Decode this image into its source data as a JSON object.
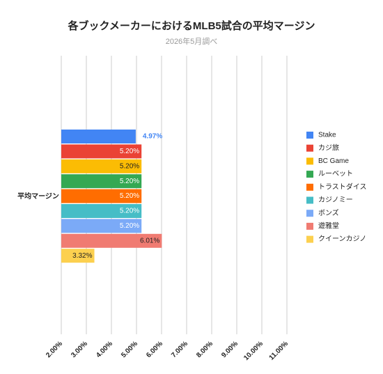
{
  "chart_data": {
    "type": "bar",
    "orientation": "horizontal",
    "title": "各ブックメーカーにおけるMLB5試合の平均マージン",
    "subtitle": "2026年5月調べ",
    "categories": [
      "平均マージン"
    ],
    "series": [
      {
        "name": "Stake",
        "color": "#4285f4",
        "values": [
          4.97
        ],
        "value_labels": [
          "4.97%"
        ]
      },
      {
        "name": "カジ旅",
        "color": "#ea4335",
        "values": [
          5.2
        ],
        "value_labels": [
          "5.20%"
        ]
      },
      {
        "name": "BC Game",
        "color": "#fbbc04",
        "values": [
          5.2
        ],
        "value_labels": [
          "5.20%"
        ]
      },
      {
        "name": "ルーベット",
        "color": "#34a853",
        "values": [
          5.2
        ],
        "value_labels": [
          "5.20%"
        ]
      },
      {
        "name": "トラストダイス",
        "color": "#ff6d01",
        "values": [
          5.2
        ],
        "value_labels": [
          "5.20%"
        ]
      },
      {
        "name": "カジノミー",
        "color": "#46bdc6",
        "values": [
          5.2
        ],
        "value_labels": [
          "5.20%"
        ]
      },
      {
        "name": "ボンズ",
        "color": "#7baaf7",
        "values": [
          5.2
        ],
        "value_labels": [
          "5.20%"
        ]
      },
      {
        "name": "遊雅堂",
        "color": "#f07b72",
        "values": [
          6.01
        ],
        "value_labels": [
          "6.01%"
        ]
      },
      {
        "name": "クイーンカジノ",
        "color": "#fcd04f",
        "values": [
          3.32
        ],
        "value_labels": [
          "3.32%"
        ]
      }
    ],
    "xlim": [
      2,
      11
    ],
    "xticks": [
      {
        "value": 2,
        "label": "2.00%"
      },
      {
        "value": 3,
        "label": "3.00%"
      },
      {
        "value": 4,
        "label": "4.00%"
      },
      {
        "value": 5,
        "label": "5.00%"
      },
      {
        "value": 6,
        "label": "6.00%"
      },
      {
        "value": 7,
        "label": "7.00%"
      },
      {
        "value": 8,
        "label": "8.00%"
      },
      {
        "value": 9,
        "label": "9.00%"
      },
      {
        "value": 10,
        "label": "10.00%"
      },
      {
        "value": 11,
        "label": "11.00%"
      }
    ],
    "grid": true,
    "legend": "right"
  }
}
